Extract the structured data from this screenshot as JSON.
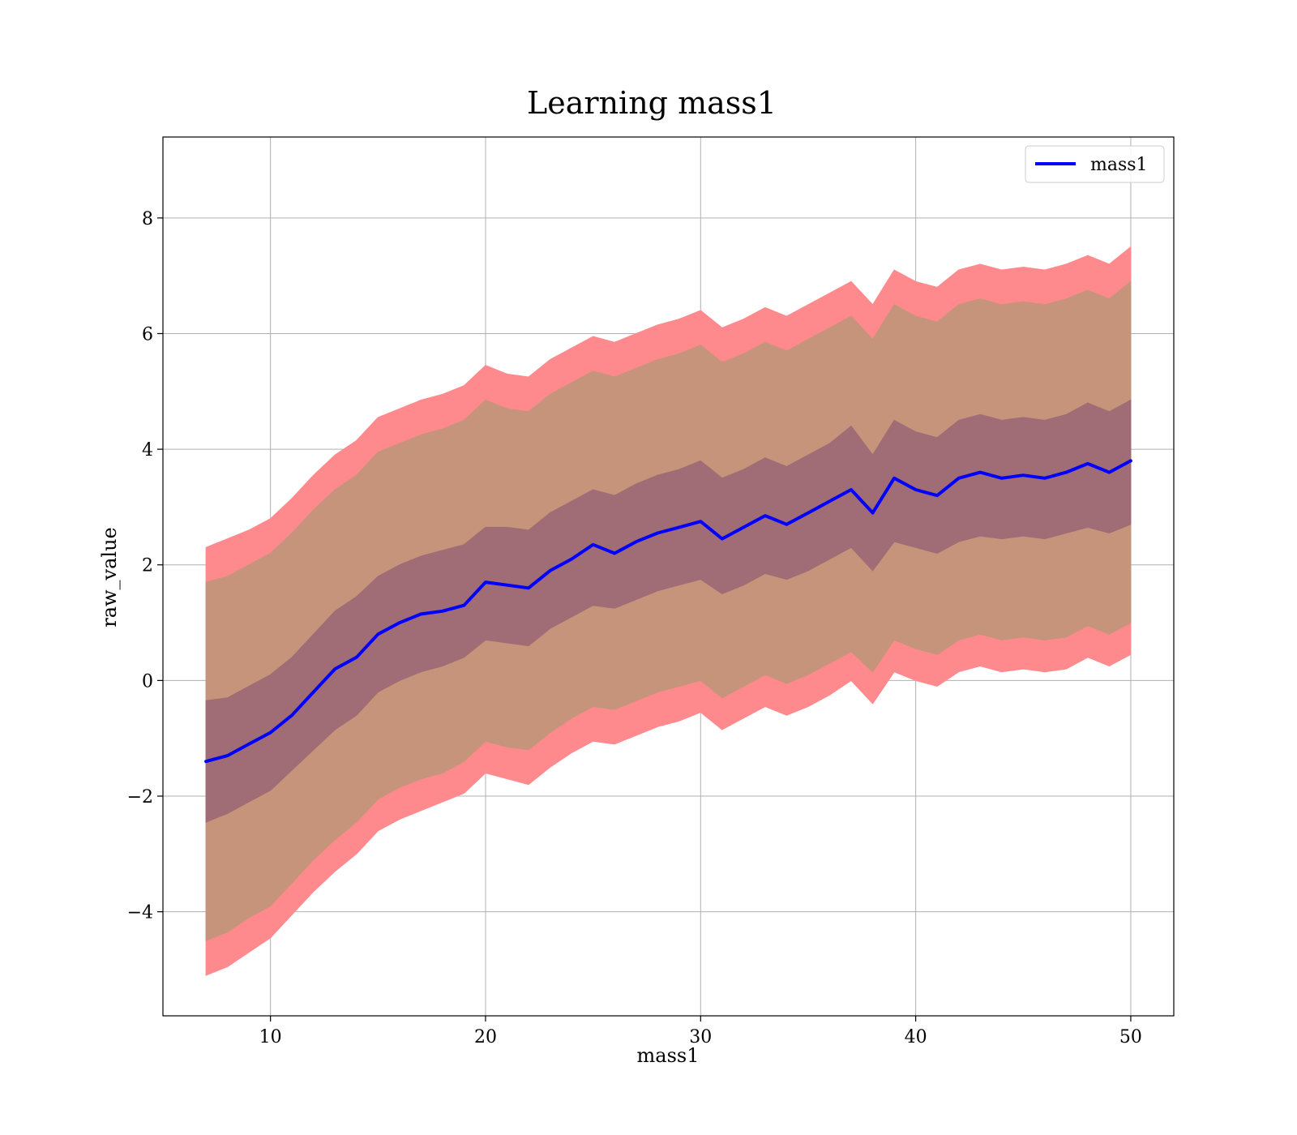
{
  "chart_data": {
    "type": "line",
    "title": "Learning mass1",
    "xlabel": "mass1",
    "ylabel": "raw_value",
    "xlim": [
      5,
      52
    ],
    "ylim": [
      -5.8,
      9.4
    ],
    "xticks": [
      10,
      20,
      30,
      40,
      50
    ],
    "yticks": [
      -4,
      -2,
      0,
      2,
      4,
      6,
      8
    ],
    "xtick_labels": [
      "10",
      "20",
      "30",
      "40",
      "50"
    ],
    "ytick_labels": [
      "−4",
      "−2",
      "0",
      "2",
      "4",
      "6",
      "8"
    ],
    "grid": true,
    "legend": {
      "entries": [
        "mass1"
      ],
      "placement": "upper-right"
    },
    "colors": {
      "line": "#0000ff",
      "band_outer": "#ff8a8e",
      "band_middle": "#c5947a",
      "band_inner": "#a06c75",
      "grid": "#b0b0b0"
    },
    "x": [
      7,
      8,
      9,
      10,
      11,
      12,
      13,
      14,
      15,
      16,
      17,
      18,
      19,
      20,
      21,
      22,
      23,
      24,
      25,
      26,
      27,
      28,
      29,
      30,
      31,
      32,
      33,
      34,
      35,
      36,
      37,
      38,
      39,
      40,
      41,
      42,
      43,
      44,
      45,
      46,
      47,
      48,
      49,
      50
    ],
    "series": [
      {
        "name": "mass1",
        "role": "mean",
        "values": [
          -1.4,
          -1.3,
          -1.1,
          -0.9,
          -0.6,
          -0.2,
          0.2,
          0.4,
          0.8,
          1.0,
          1.15,
          1.2,
          1.3,
          1.7,
          1.65,
          1.6,
          1.9,
          2.1,
          2.35,
          2.2,
          2.4,
          2.55,
          2.65,
          2.75,
          2.45,
          2.65,
          2.85,
          2.7,
          2.9,
          3.1,
          3.3,
          2.9,
          3.5,
          3.3,
          3.2,
          3.5,
          3.6,
          3.5,
          3.55,
          3.5,
          3.6,
          3.75,
          3.6,
          3.8
        ]
      },
      {
        "role": "band_inner",
        "lower": [
          -2.45,
          -2.3,
          -2.1,
          -1.9,
          -1.55,
          -1.2,
          -0.85,
          -0.6,
          -0.2,
          0.0,
          0.15,
          0.25,
          0.4,
          0.7,
          0.65,
          0.6,
          0.9,
          1.1,
          1.3,
          1.25,
          1.4,
          1.55,
          1.65,
          1.75,
          1.5,
          1.65,
          1.85,
          1.75,
          1.9,
          2.1,
          2.3,
          1.9,
          2.4,
          2.3,
          2.2,
          2.4,
          2.5,
          2.45,
          2.5,
          2.45,
          2.55,
          2.65,
          2.55,
          2.7
        ],
        "upper": [
          -0.35,
          -0.3,
          -0.1,
          0.1,
          0.4,
          0.8,
          1.2,
          1.45,
          1.8,
          2.0,
          2.15,
          2.25,
          2.35,
          2.65,
          2.65,
          2.6,
          2.9,
          3.1,
          3.3,
          3.2,
          3.4,
          3.55,
          3.65,
          3.8,
          3.5,
          3.65,
          3.85,
          3.7,
          3.9,
          4.1,
          4.4,
          3.9,
          4.5,
          4.3,
          4.2,
          4.5,
          4.6,
          4.5,
          4.55,
          4.5,
          4.6,
          4.8,
          4.65,
          4.85
        ]
      },
      {
        "role": "band_middle",
        "lower": [
          -4.5,
          -4.35,
          -4.1,
          -3.9,
          -3.5,
          -3.1,
          -2.75,
          -2.45,
          -2.05,
          -1.85,
          -1.7,
          -1.6,
          -1.4,
          -1.05,
          -1.15,
          -1.2,
          -0.9,
          -0.65,
          -0.45,
          -0.5,
          -0.35,
          -0.2,
          -0.1,
          0.0,
          -0.3,
          -0.1,
          0.1,
          -0.05,
          0.1,
          0.3,
          0.5,
          0.15,
          0.7,
          0.55,
          0.45,
          0.7,
          0.8,
          0.7,
          0.75,
          0.7,
          0.75,
          0.95,
          0.8,
          1.0
        ],
        "upper": [
          1.7,
          1.8,
          2.0,
          2.2,
          2.55,
          2.95,
          3.3,
          3.55,
          3.95,
          4.1,
          4.25,
          4.35,
          4.5,
          4.85,
          4.7,
          4.65,
          4.95,
          5.15,
          5.35,
          5.25,
          5.4,
          5.55,
          5.65,
          5.8,
          5.5,
          5.65,
          5.85,
          5.7,
          5.9,
          6.1,
          6.3,
          5.9,
          6.5,
          6.3,
          6.2,
          6.5,
          6.6,
          6.5,
          6.55,
          6.5,
          6.6,
          6.75,
          6.6,
          6.9
        ]
      },
      {
        "role": "band_outer",
        "lower": [
          -5.1,
          -4.95,
          -4.7,
          -4.45,
          -4.05,
          -3.65,
          -3.3,
          -3.0,
          -2.6,
          -2.4,
          -2.25,
          -2.1,
          -1.95,
          -1.6,
          -1.7,
          -1.8,
          -1.5,
          -1.25,
          -1.05,
          -1.1,
          -0.95,
          -0.8,
          -0.7,
          -0.55,
          -0.85,
          -0.65,
          -0.45,
          -0.6,
          -0.45,
          -0.25,
          0.0,
          -0.4,
          0.15,
          0.0,
          -0.1,
          0.15,
          0.25,
          0.15,
          0.2,
          0.15,
          0.2,
          0.4,
          0.25,
          0.45
        ],
        "upper": [
          2.3,
          2.45,
          2.6,
          2.8,
          3.15,
          3.55,
          3.9,
          4.15,
          4.55,
          4.7,
          4.85,
          4.95,
          5.1,
          5.45,
          5.3,
          5.25,
          5.55,
          5.75,
          5.95,
          5.85,
          6.0,
          6.15,
          6.25,
          6.4,
          6.1,
          6.25,
          6.45,
          6.3,
          6.5,
          6.7,
          6.9,
          6.5,
          7.1,
          6.9,
          6.8,
          7.1,
          7.2,
          7.1,
          7.15,
          7.1,
          7.2,
          7.35,
          7.2,
          7.5
        ]
      }
    ]
  }
}
